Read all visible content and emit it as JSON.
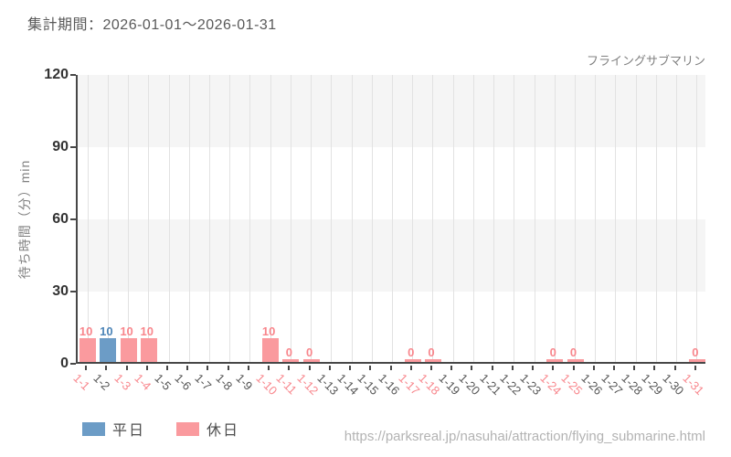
{
  "header": {
    "period_label": "集計期間：2026-01-01～2026-01-31"
  },
  "chart_data": {
    "type": "bar",
    "title": "フライングサブマリン",
    "xlabel": "",
    "ylabel": "待ち時間（分）min",
    "ylim": [
      0,
      120
    ],
    "yticks": [
      0,
      30,
      60,
      90,
      120
    ],
    "grid": "vertical-only, alternating horizontal bands",
    "legend_position": "bottom-left",
    "categories": [
      "1-1",
      "1-2",
      "1-3",
      "1-4",
      "1-5",
      "1-6",
      "1-7",
      "1-8",
      "1-9",
      "1-10",
      "1-11",
      "1-12",
      "1-13",
      "1-14",
      "1-15",
      "1-16",
      "1-17",
      "1-18",
      "1-19",
      "1-20",
      "1-21",
      "1-22",
      "1-23",
      "1-24",
      "1-25",
      "1-26",
      "1-27",
      "1-28",
      "1-29",
      "1-30",
      "1-31"
    ],
    "days": [
      {
        "label": "1-1",
        "day_type": "holiday",
        "value": 10
      },
      {
        "label": "1-2",
        "day_type": "weekday",
        "value": 10
      },
      {
        "label": "1-3",
        "day_type": "holiday",
        "value": 10
      },
      {
        "label": "1-4",
        "day_type": "holiday",
        "value": 10
      },
      {
        "label": "1-5",
        "day_type": "weekday",
        "value": null
      },
      {
        "label": "1-6",
        "day_type": "weekday",
        "value": null
      },
      {
        "label": "1-7",
        "day_type": "weekday",
        "value": null
      },
      {
        "label": "1-8",
        "day_type": "weekday",
        "value": null
      },
      {
        "label": "1-9",
        "day_type": "weekday",
        "value": null
      },
      {
        "label": "1-10",
        "day_type": "holiday",
        "value": 10
      },
      {
        "label": "1-11",
        "day_type": "holiday",
        "value": 0
      },
      {
        "label": "1-12",
        "day_type": "holiday",
        "value": 0
      },
      {
        "label": "1-13",
        "day_type": "weekday",
        "value": null
      },
      {
        "label": "1-14",
        "day_type": "weekday",
        "value": null
      },
      {
        "label": "1-15",
        "day_type": "weekday",
        "value": null
      },
      {
        "label": "1-16",
        "day_type": "weekday",
        "value": null
      },
      {
        "label": "1-17",
        "day_type": "holiday",
        "value": 0
      },
      {
        "label": "1-18",
        "day_type": "holiday",
        "value": 0
      },
      {
        "label": "1-19",
        "day_type": "weekday",
        "value": null
      },
      {
        "label": "1-20",
        "day_type": "weekday",
        "value": null
      },
      {
        "label": "1-21",
        "day_type": "weekday",
        "value": null
      },
      {
        "label": "1-22",
        "day_type": "weekday",
        "value": null
      },
      {
        "label": "1-23",
        "day_type": "weekday",
        "value": null
      },
      {
        "label": "1-24",
        "day_type": "holiday",
        "value": 0
      },
      {
        "label": "1-25",
        "day_type": "holiday",
        "value": 0
      },
      {
        "label": "1-26",
        "day_type": "weekday",
        "value": null
      },
      {
        "label": "1-27",
        "day_type": "weekday",
        "value": null
      },
      {
        "label": "1-28",
        "day_type": "weekday",
        "value": null
      },
      {
        "label": "1-29",
        "day_type": "weekday",
        "value": null
      },
      {
        "label": "1-30",
        "day_type": "weekday",
        "value": null
      },
      {
        "label": "1-31",
        "day_type": "holiday",
        "value": 0
      }
    ],
    "colors": {
      "weekday_bar": "#6c9cc6",
      "weekday_value_label": "#4e86b8",
      "holiday_bar": "#fa9a9e",
      "holiday_value_label": "#f8868c",
      "weekday_tick_label": "#555555",
      "holiday_tick_label": "#f8868c",
      "band_gray": "#f5f5f5",
      "gridline": "#e2e2e2",
      "axis": "#474747"
    }
  },
  "legend": {
    "items": [
      {
        "id": "weekday",
        "label": "平日",
        "color": "#6c9cc6"
      },
      {
        "id": "holiday",
        "label": "休日",
        "color": "#fa9a9e"
      }
    ]
  },
  "footer": {
    "url": "https://parksreal.jp/nasuhai/attraction/flying_submarine.html"
  }
}
